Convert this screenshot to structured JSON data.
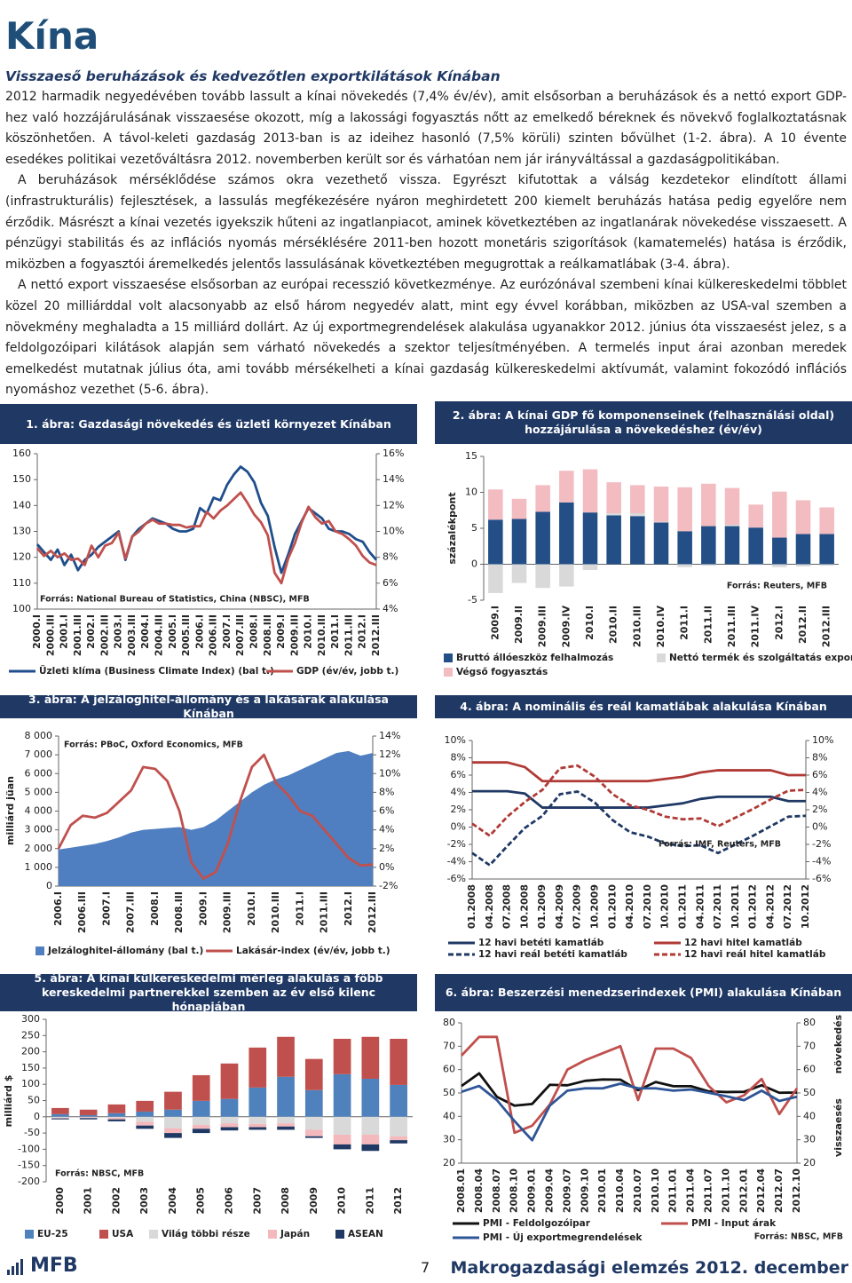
{
  "header": {
    "title": "Kína",
    "subtitle": "Visszaeső beruházások és kedvezőtlen exportkilátások Kínában"
  },
  "paragraphs": [
    "2012 harmadik negyedévében tovább lassult a kínai növekedés (7,4% év/év), amit elsősorban a beruházások és a nettó export GDP-hez való hozzájárulásának visszaesése okozott, míg a lakossági fogyasztás nőtt az emelkedő béreknek és növekvő foglalkoztatásnak köszönhetően. A távol-keleti gazdaság 2013-ban is az ideihez hasonló (7,5% körüli) szinten bővülhet (1-2. ábra). A 10 évente esedékes politikai vezetőváltásra 2012. novemberben került sor és várhatóan nem jár irányváltással a gazdaságpolitikában.",
    "A beruházások mérséklődése számos okra vezethető vissza. Egyrészt kifutottak a válság kezdetekor elindított állami (infrastrukturális) fejlesztések, a lassulás megfékezésére nyáron meghirdetett 200 kiemelt beruházás hatása pedig egyelőre nem érződik. Másrészt a kínai vezetés igyekszik hűteni az ingatlanpiacot, aminek következtében az ingatlanárak növekedése visszaesett. A pénzügyi stabilitás és az inflációs nyomás mérséklésére 2011-ben hozott monetáris szigorítások (kamatemelés) hatása is érződik, miközben a fogyasztói áremelkedés jelentős lassulásának következtében megugrottak a reálkamatlábak (3-4. ábra).",
    "A nettó export visszaesése elsősorban az európai recesszió következménye. Az eurózónával szembeni kínai külkereskedelmi többlet közel 20 milliárddal volt alacsonyabb az első három negyedév alatt, mint egy évvel korábban, miközben az USA-val szemben a növekmény meghaladta a 15 milliárd dollárt. Az új exportmegrendelések alakulása ugyanakkor 2012. június óta visszaesést jelez, s a feldolgozóipari kilátások alapján sem várható növekedés a szektor teljesítményében. A termelés input árai azonban meredek emelkedést mutatnak július óta, ami tovább mérsékelheti a kínai gazdaság külkereskedelmi aktívumát, valamint fokozódó inflációs nyomáshoz vezethet (5-6. ábra)."
  ],
  "chart_data": [
    {
      "type": "line",
      "title": "1. ábra: Gazdasági növekedés és üzleti környezet Kínában",
      "source": "Forrás: National Bureau of Statistics, China (NBSC), MFB",
      "categories": [
        "2000.I",
        null,
        "2000.III",
        null,
        "2001.I",
        null,
        "2001.III",
        null,
        "2002.I",
        null,
        "2002.III",
        null,
        "2003.I",
        null,
        "2003.III",
        null,
        "2004.I",
        null,
        "2004.III",
        null,
        "2005.I",
        null,
        "2005.III",
        null,
        "2006.I",
        null,
        "2006.III",
        null,
        "2007.I",
        null,
        "2007.III",
        null,
        "2008.I",
        null,
        "2008.III",
        null,
        "2009.I",
        null,
        "2009.III",
        null,
        "2010.I",
        null,
        "2010.III",
        null,
        "2011.I",
        null,
        "2011.III",
        null,
        "2012.I",
        null,
        "2012.III"
      ],
      "series": [
        {
          "name": "Üzleti klíma (Business Climate Index) (bal t.)",
          "color": "#1f4e8c",
          "values": [
            125,
            122,
            119,
            123,
            117,
            121,
            115,
            119,
            121,
            124,
            126,
            128,
            130,
            119,
            128,
            131,
            133,
            135,
            134,
            133,
            131,
            130,
            130,
            131,
            139,
            137,
            143,
            142,
            148,
            152,
            155,
            153,
            149,
            141,
            136,
            124,
            114,
            121,
            129,
            134,
            139,
            137,
            135,
            131,
            130,
            130,
            129,
            127,
            126,
            122,
            119
          ]
        },
        {
          "name": "GDP (év/év, jobb t.)",
          "color": "#c0504d",
          "axis": "y2",
          "values": [
            8.7,
            8.1,
            8.5,
            8.0,
            8.3,
            7.8,
            7.9,
            7.4,
            8.9,
            8.0,
            8.9,
            9.1,
            9.9,
            7.9,
            9.6,
            10.0,
            10.6,
            10.9,
            10.6,
            10.6,
            10.5,
            10.5,
            10.3,
            10.4,
            10.4,
            11.5,
            11.0,
            11.6,
            12.0,
            12.5,
            13.0,
            12.2,
            11.3,
            10.7,
            9.7,
            6.8,
            6.0,
            7.9,
            9.1,
            10.7,
            11.9,
            11.1,
            10.6,
            10.8,
            10.0,
            9.8,
            9.4,
            8.9,
            8.1,
            7.6,
            7.4
          ]
        }
      ],
      "ylim": [
        100,
        160
      ],
      "yticks": [
        100,
        110,
        120,
        130,
        140,
        150,
        160
      ],
      "y2lim": [
        4,
        16
      ],
      "y2ticks": [
        {
          "value": 4,
          "label": "4%"
        },
        {
          "value": 6,
          "label": "6%"
        },
        {
          "value": 8,
          "label": "8%"
        },
        {
          "value": 10,
          "label": "10%"
        },
        {
          "value": 12,
          "label": "12%"
        },
        {
          "value": 14,
          "label": "14%"
        },
        {
          "value": 16,
          "label": "16%"
        }
      ],
      "grid": false
    },
    {
      "type": "stacked_bar",
      "title": "2. ábra: A kínai GDP fő komponenseinek (felhasználási oldal) hozzájárulása a növekedéshez (év/év)",
      "source": "Forrás: Reuters, MFB",
      "ylabel": "százalékpont",
      "categories": [
        "2009.I",
        "2009.II",
        "2009.III",
        "2009.IV",
        "2010.I",
        "2010.II",
        "2010.III",
        "2010.IV",
        "2011.I",
        "2011.II",
        "2011.III",
        "2011.IV",
        "2012.I",
        "2012.II",
        "2012.III"
      ],
      "series": [
        {
          "name": "Bruttó állóeszköz felhalmozás",
          "color": "#234f86",
          "values": [
            6.2,
            6.3,
            7.3,
            8.6,
            7.2,
            6.8,
            6.7,
            5.8,
            4.6,
            5.3,
            5.3,
            5.1,
            3.7,
            4.2,
            4.2
          ]
        },
        {
          "name": "Nettó termék és szolgáltatás export",
          "color": "#d9d9d9",
          "values": [
            -4.0,
            -2.6,
            -3.3,
            -3.1,
            -0.8,
            0.3,
            0.4,
            0.1,
            -0.4,
            -0.2,
            0.2,
            -0.1,
            -0.4,
            -0.3,
            -0.2
          ]
        },
        {
          "name": "Végső fogyasztás",
          "color": "#f2bcc1",
          "values": [
            4.2,
            2.8,
            3.7,
            4.4,
            6.0,
            4.3,
            3.9,
            4.9,
            6.1,
            5.9,
            5.1,
            3.2,
            6.4,
            4.7,
            3.7
          ]
        }
      ],
      "ylim": [
        -5,
        15
      ],
      "yticks": [
        -5,
        0,
        5,
        10,
        15
      ],
      "grid": false
    },
    {
      "type": "line",
      "title": "3. ábra: A jelzáloghitel-állomány és a lakásárak alakulása Kínában",
      "source": "Forrás: PBoC, Oxford Economics, MFB",
      "ylabel": "milliárd jüan",
      "categories": [
        "2006.I",
        null,
        "2006.III",
        null,
        "2007.I",
        null,
        "2007.III",
        null,
        "2008.I",
        null,
        "2008.III",
        null,
        "2009.I",
        null,
        "2009.III",
        null,
        "2010.I",
        null,
        "2010.III",
        null,
        "2011.I",
        null,
        "2011.III",
        null,
        "2012.I",
        null,
        "2012.III"
      ],
      "series": [
        {
          "name": "Jelzáloghitel-állomány (bal t.)",
          "color": "#4f7fc0",
          "kind": "area",
          "values": [
            1950,
            2050,
            2150,
            2250,
            2400,
            2600,
            2850,
            3000,
            3050,
            3100,
            3150,
            3000,
            3150,
            3500,
            4000,
            4500,
            5000,
            5400,
            5700,
            5900,
            6200,
            6500,
            6800,
            7100,
            7200,
            6950,
            7100
          ]
        },
        {
          "name": "Lakásár-index (év/év, jobb t.)",
          "color": "#c0504d",
          "axis": "y2",
          "values": [
            2.0,
            4.5,
            5.5,
            5.3,
            5.8,
            7.0,
            8.2,
            10.7,
            10.5,
            9.2,
            6.0,
            0.5,
            -1.2,
            -0.5,
            2.5,
            7.0,
            10.7,
            12.0,
            9.0,
            7.7,
            6.0,
            5.5,
            4.0,
            2.5,
            1.0,
            0.2,
            0.3
          ]
        }
      ],
      "ylim": [
        0,
        8000
      ],
      "yticks": [
        0,
        {
          "value": 1000,
          "label": "1 000"
        },
        {
          "value": 2000,
          "label": "2 000"
        },
        {
          "value": 3000,
          "label": "3 000"
        },
        {
          "value": 4000,
          "label": "4 000"
        },
        {
          "value": 5000,
          "label": "5 000"
        },
        {
          "value": 6000,
          "label": "6 000"
        },
        {
          "value": 7000,
          "label": "7 000"
        },
        {
          "value": 8000,
          "label": "8 000"
        }
      ],
      "y2lim": [
        -2,
        14
      ],
      "y2ticks": [
        {
          "value": -2,
          "label": "-2%"
        },
        {
          "value": 0,
          "label": "0%"
        },
        {
          "value": 2,
          "label": "2%"
        },
        {
          "value": 4,
          "label": "4%"
        },
        {
          "value": 6,
          "label": "6%"
        },
        {
          "value": 8,
          "label": "8%"
        },
        {
          "value": 10,
          "label": "10%"
        },
        {
          "value": 12,
          "label": "12%"
        },
        {
          "value": 14,
          "label": "14%"
        }
      ],
      "grid": false
    },
    {
      "type": "line",
      "title": "4. ábra: A nominális és reál kamatlábak alakulása Kínában",
      "source": "Forrás: IMF, Reuters, MFB",
      "categories": [
        "01.2008",
        "04.2008",
        "07.2008",
        "10.2008",
        "01.2009",
        "04.2009",
        "07.2009",
        "10.2009",
        "01.2010",
        "04.2010",
        "07.2010",
        "10.2010",
        "01.2011",
        "04.2011",
        "07.2011",
        "10.2011",
        "01.2012",
        "04.2012",
        "07.2012",
        "10.2012"
      ],
      "series": [
        {
          "name": "12 havi betéti kamatláb",
          "color": "#1f3864",
          "values": [
            4.14,
            4.14,
            4.14,
            3.87,
            2.25,
            2.25,
            2.25,
            2.25,
            2.25,
            2.25,
            2.25,
            2.5,
            2.75,
            3.25,
            3.5,
            3.5,
            3.5,
            3.5,
            3.0,
            3.0
          ]
        },
        {
          "name": "12 havi reál betéti kamatláb",
          "color": "#1f3864",
          "style": "dashed",
          "values": [
            -3.0,
            -4.4,
            -2.2,
            -0.1,
            1.3,
            3.8,
            4.1,
            2.8,
            0.8,
            -0.6,
            -1.1,
            -1.9,
            -2.2,
            -2.1,
            -3.0,
            -2.0,
            -1.0,
            0.1,
            1.2,
            1.3
          ]
        },
        {
          "name": "12 havi hitel kamatláb",
          "color": "#b03a36",
          "values": [
            7.47,
            7.47,
            7.47,
            6.93,
            5.31,
            5.31,
            5.31,
            5.31,
            5.31,
            5.31,
            5.31,
            5.56,
            5.81,
            6.31,
            6.56,
            6.56,
            6.56,
            6.56,
            6.0,
            6.0
          ]
        },
        {
          "name": "12 havi reál hitel kamatláb",
          "color": "#b03a36",
          "style": "dashed",
          "values": [
            0.4,
            -1.0,
            1.2,
            2.9,
            4.3,
            6.8,
            7.1,
            5.8,
            3.8,
            2.5,
            2.0,
            1.2,
            0.9,
            1.0,
            0.1,
            1.1,
            2.1,
            3.2,
            4.2,
            4.3
          ]
        }
      ],
      "ylim": [
        -6,
        10
      ],
      "yticks": [
        {
          "value": -6,
          "label": "-6%"
        },
        {
          "value": -4,
          "label": "-4%"
        },
        {
          "value": -2,
          "label": "-2%"
        },
        {
          "value": 0,
          "label": "0%"
        },
        {
          "value": 2,
          "label": "2%"
        },
        {
          "value": 4,
          "label": "4%"
        },
        {
          "value": 6,
          "label": "6%"
        },
        {
          "value": 8,
          "label": "8%"
        },
        {
          "value": 10,
          "label": "10%"
        }
      ],
      "y2lim": [
        -6,
        10
      ],
      "y2ticks": [
        {
          "value": -6,
          "label": "-6%"
        },
        {
          "value": -4,
          "label": "-4%"
        },
        {
          "value": -2,
          "label": "-2%"
        },
        {
          "value": 0,
          "label": "0%"
        },
        {
          "value": 2,
          "label": "2%"
        },
        {
          "value": 4,
          "label": "4%"
        },
        {
          "value": 6,
          "label": "6%"
        },
        {
          "value": 8,
          "label": "8%"
        },
        {
          "value": 10,
          "label": "10%"
        }
      ],
      "grid": false
    },
    {
      "type": "stacked_bar",
      "title": "5. ábra: A kínai külkereskedelmi mérleg alakulás a főbb kereskedelmi partnerekkel szemben az év első kilenc hónapjában",
      "source": "Forrás: NBSC, MFB",
      "ylabel": "milliárd $",
      "categories": [
        "2000",
        "2001",
        "2002",
        "2003",
        "2004",
        "2005",
        "2006",
        "2007",
        "2008",
        "2009",
        "2010",
        "2011",
        "2012"
      ],
      "series": [
        {
          "name": "EU-25",
          "color": "#4f81bd",
          "values": [
            8,
            5,
            11,
            16,
            22,
            49,
            55,
            90,
            123,
            82,
            131,
            117,
            98
          ]
        },
        {
          "name": "USA",
          "color": "#c0504d",
          "values": [
            19,
            17,
            27,
            33,
            55,
            79,
            109,
            123,
            123,
            96,
            109,
            129,
            142
          ]
        },
        {
          "name": "Világ többi része",
          "color": "#d9d9d9",
          "values": [
            -3,
            -2,
            -3,
            -15,
            -35,
            -25,
            -20,
            -22,
            -20,
            -40,
            -55,
            -55,
            -60
          ]
        },
        {
          "name": "Japán",
          "color": "#f4b9bd",
          "values": [
            -2,
            -2,
            -5,
            -12,
            -15,
            -12,
            -12,
            -10,
            -10,
            -20,
            -30,
            -30,
            -12
          ]
        },
        {
          "name": "ASEAN",
          "color": "#1f3864",
          "values": [
            -3,
            -4,
            -6,
            -10,
            -15,
            -13,
            -10,
            -8,
            -10,
            -5,
            -15,
            -20,
            -10
          ]
        }
      ],
      "ylim": [
        -200,
        300
      ],
      "yticks": [
        -200,
        -150,
        -100,
        -50,
        0,
        50,
        100,
        150,
        200,
        250,
        300
      ],
      "grid": false
    },
    {
      "type": "line",
      "title": "6. ábra: Beszerzési menedzserindexek (PMI) alakulása Kínában",
      "source": "Forrás: NBSC, MFB",
      "annotations": [
        "növekedés",
        "visszaesés"
      ],
      "categories": [
        "2008.01",
        "2008.04",
        "2008.07",
        "2008.10",
        "2009.01",
        "2009.04",
        "2009.07",
        "2009.10",
        "2010.01",
        "2010.04",
        "2010.07",
        "2010.10",
        "2011.01",
        "2011.04",
        "2011.07",
        "2011.10",
        "2012.01",
        "2012.04",
        "2012.07",
        "2012.10"
      ],
      "series": [
        {
          "name": "PMI - Feldolgozóipar",
          "color": "#111111",
          "values": [
            53.0,
            58.4,
            48.4,
            44.6,
            45.3,
            53.5,
            53.3,
            55.2,
            55.8,
            55.7,
            51.2,
            54.7,
            52.9,
            52.9,
            50.7,
            50.4,
            50.5,
            53.3,
            50.1,
            50.2
          ]
        },
        {
          "name": "PMI - Input árak",
          "color": "#c0504d",
          "values": [
            66,
            74,
            74,
            33,
            36,
            45,
            60,
            64,
            67,
            70,
            47,
            69,
            69,
            65,
            53,
            46,
            49,
            56,
            41,
            52
          ]
        },
        {
          "name": "PMI - Új exportmegrendelések",
          "color": "#2e5597",
          "values": [
            50.5,
            53.0,
            47.0,
            38.0,
            29.8,
            44.6,
            51.0,
            52.0,
            52.0,
            54.0,
            52.0,
            52.0,
            51.0,
            51.5,
            50.1,
            48.6,
            46.9,
            51.0,
            46.6,
            48.4
          ]
        }
      ],
      "ylim": [
        20,
        80
      ],
      "yticks": [
        20,
        30,
        40,
        50,
        60,
        70,
        80
      ],
      "y2lim": [
        20,
        80
      ],
      "y2ticks": [
        20,
        30,
        40,
        50,
        60,
        70,
        80
      ],
      "grid": false
    }
  ],
  "footer": {
    "logo": "MFB",
    "page": 7,
    "text": "Makrogazdasági elemzés 2012. december"
  }
}
